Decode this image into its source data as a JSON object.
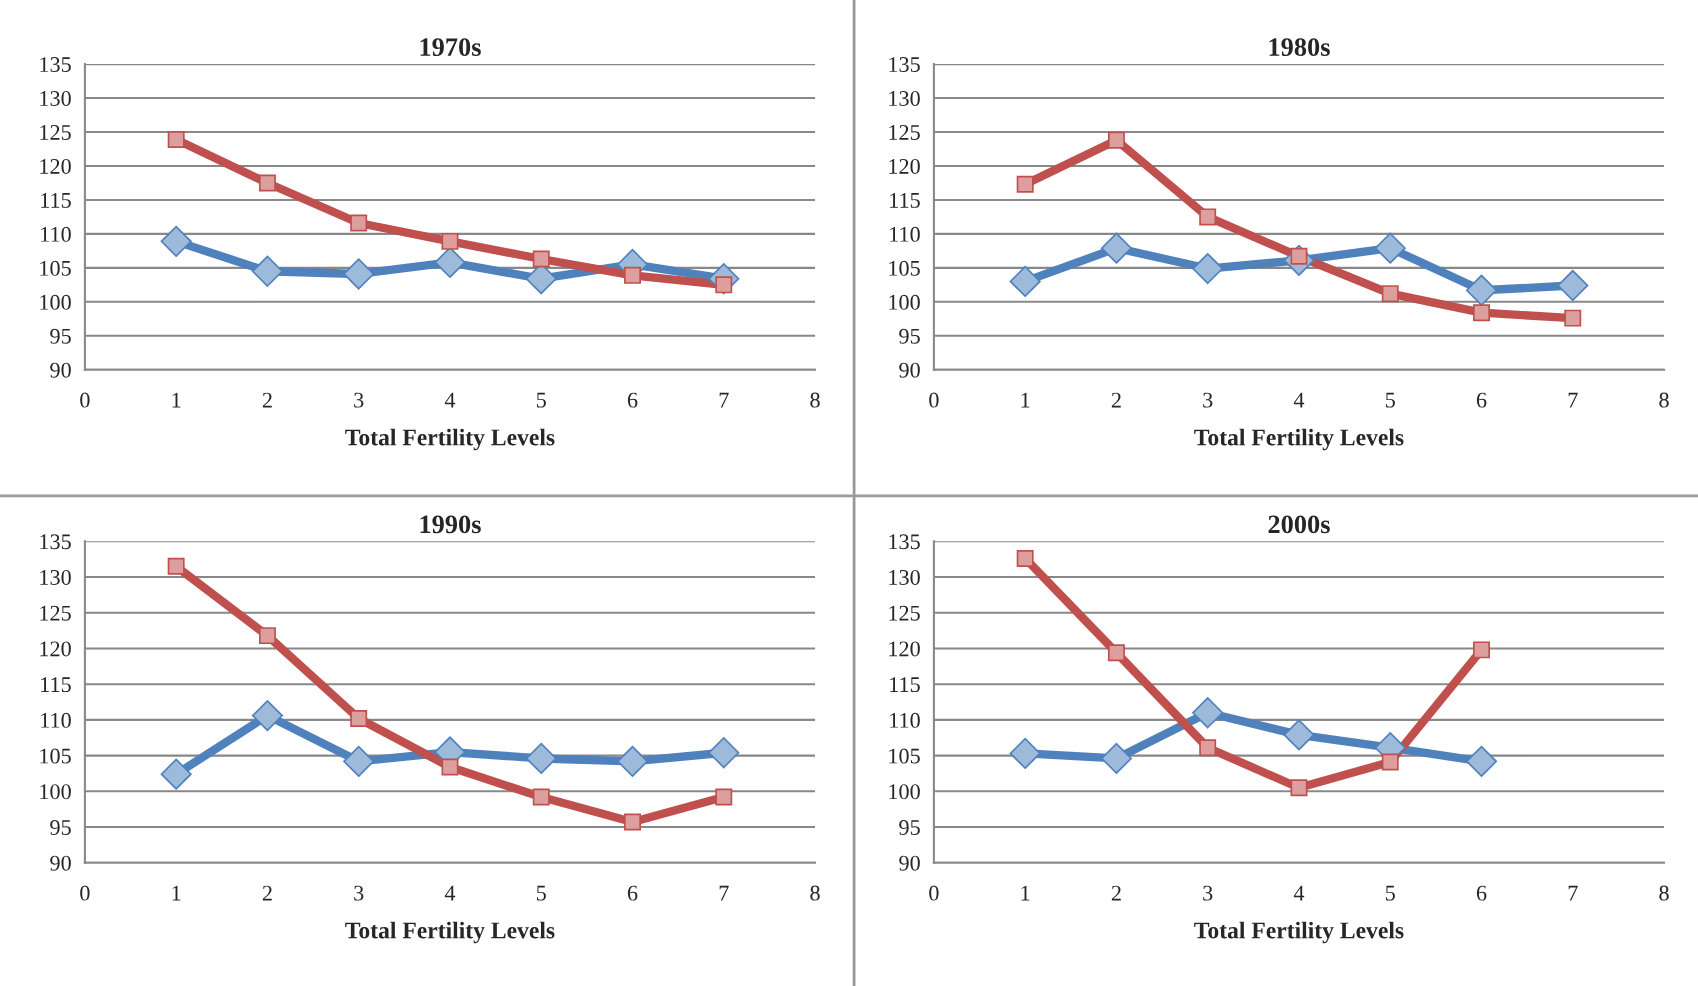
{
  "chart_data": [
    {
      "type": "line",
      "title": "1970s",
      "xlabel": "Total Fertility Levels",
      "x": [
        1,
        2,
        3,
        4,
        5,
        6,
        7
      ],
      "xlim": [
        0,
        8
      ],
      "xticks": [
        0,
        1,
        2,
        3,
        4,
        5,
        6,
        7,
        8
      ],
      "ylim": [
        90,
        135
      ],
      "yticks": [
        90,
        95,
        100,
        105,
        110,
        115,
        120,
        125,
        130,
        135
      ],
      "grid": "y",
      "series": [
        {
          "color": "#4f81bd",
          "marker": "diamond",
          "values": [
            108.9,
            104.5,
            104.1,
            105.8,
            103.4,
            105.5,
            103.4
          ]
        },
        {
          "color": "#c0504d",
          "marker": "square",
          "values": [
            123.9,
            117.5,
            111.6,
            108.9,
            106.3,
            103.9,
            102.5
          ]
        }
      ]
    },
    {
      "type": "line",
      "title": "1980s",
      "xlabel": "Total Fertility Levels",
      "x": [
        1,
        2,
        3,
        4,
        5,
        6,
        7
      ],
      "xlim": [
        0,
        8
      ],
      "xticks": [
        0,
        1,
        2,
        3,
        4,
        5,
        6,
        7,
        8
      ],
      "ylim": [
        90,
        135
      ],
      "yticks": [
        90,
        95,
        100,
        105,
        110,
        115,
        120,
        125,
        130,
        135
      ],
      "grid": "y",
      "series": [
        {
          "color": "#4f81bd",
          "marker": "diamond",
          "values": [
            103.0,
            107.9,
            104.9,
            106.1,
            107.9,
            101.7,
            102.4
          ]
        },
        {
          "color": "#c0504d",
          "marker": "square",
          "values": [
            117.3,
            123.8,
            112.5,
            106.7,
            101.2,
            98.4,
            97.6
          ]
        }
      ]
    },
    {
      "type": "line",
      "title": "1990s",
      "xlabel": "Total Fertility Levels",
      "x": [
        1,
        2,
        3,
        4,
        5,
        6,
        7
      ],
      "xlim": [
        0,
        8
      ],
      "xticks": [
        0,
        1,
        2,
        3,
        4,
        5,
        6,
        7,
        8
      ],
      "ylim": [
        90,
        135
      ],
      "yticks": [
        90,
        95,
        100,
        105,
        110,
        115,
        120,
        125,
        130,
        135
      ],
      "grid": "y",
      "series": [
        {
          "color": "#4f81bd",
          "marker": "diamond",
          "values": [
            102.4,
            110.6,
            104.2,
            105.5,
            104.6,
            104.2,
            105.4
          ]
        },
        {
          "color": "#c0504d",
          "marker": "square",
          "values": [
            131.5,
            121.8,
            110.2,
            103.4,
            99.2,
            95.7,
            99.2
          ]
        }
      ]
    },
    {
      "type": "line",
      "title": "2000s",
      "xlabel": "Total Fertility Levels",
      "x": [
        1,
        2,
        3,
        4,
        5,
        6
      ],
      "xlim": [
        0,
        8
      ],
      "xticks": [
        0,
        1,
        2,
        3,
        4,
        5,
        6,
        7,
        8
      ],
      "ylim": [
        90,
        135
      ],
      "yticks": [
        90,
        95,
        100,
        105,
        110,
        115,
        120,
        125,
        130,
        135
      ],
      "grid": "y",
      "series": [
        {
          "color": "#4f81bd",
          "marker": "diamond",
          "values": [
            105.3,
            104.6,
            111.0,
            107.9,
            106.1,
            104.2
          ]
        },
        {
          "color": "#c0504d",
          "marker": "square",
          "values": [
            132.6,
            119.4,
            106.1,
            100.5,
            104.1,
            119.8
          ]
        }
      ]
    }
  ]
}
